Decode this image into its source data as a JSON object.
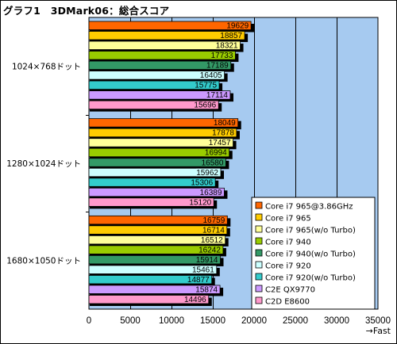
{
  "title": "グラフ1　3DMark06：総合スコア",
  "chart_data": {
    "type": "bar",
    "orientation": "horizontal",
    "title": "グラフ1　3DMark06：総合スコア",
    "xlabel": "→Fast",
    "xlim": [
      0,
      35000
    ],
    "x_ticks": [
      0,
      5000,
      10000,
      15000,
      20000,
      25000,
      30000,
      35000
    ],
    "grid": "vertical lines",
    "legend_position": "bottom-right",
    "plot_background": "#a6caf0",
    "categories": [
      "1024×768ドット",
      "1280×1024ドット",
      "1680×1050ドット"
    ],
    "series": [
      {
        "name": "Core i7 965@3.86GHz",
        "color": "#ff6600",
        "values": [
          19629,
          18049,
          16759
        ]
      },
      {
        "name": "Core i7 965",
        "color": "#ffcc00",
        "values": [
          18857,
          17878,
          16714
        ]
      },
      {
        "name": "Core i7 965(w/o Turbo)",
        "color": "#ffff99",
        "values": [
          18321,
          17457,
          16512
        ]
      },
      {
        "name": "Core i7 940",
        "color": "#99cc00",
        "values": [
          17733,
          16994,
          16242
        ]
      },
      {
        "name": "Core i7 940(w/o Turbo)",
        "color": "#339966",
        "values": [
          17189,
          16580,
          15914
        ]
      },
      {
        "name": "Core i7 920",
        "color": "#ccffff",
        "values": [
          16405,
          15962,
          15461
        ]
      },
      {
        "name": "Core i7 920(w/o Turbo)",
        "color": "#33cccc",
        "values": [
          15775,
          15306,
          14877
        ]
      },
      {
        "name": "C2E QX9770",
        "color": "#cc99ff",
        "values": [
          17114,
          16389,
          15874
        ]
      },
      {
        "name": "C2D E8600",
        "color": "#ff99cc",
        "values": [
          15696,
          15120,
          14496
        ]
      }
    ]
  }
}
